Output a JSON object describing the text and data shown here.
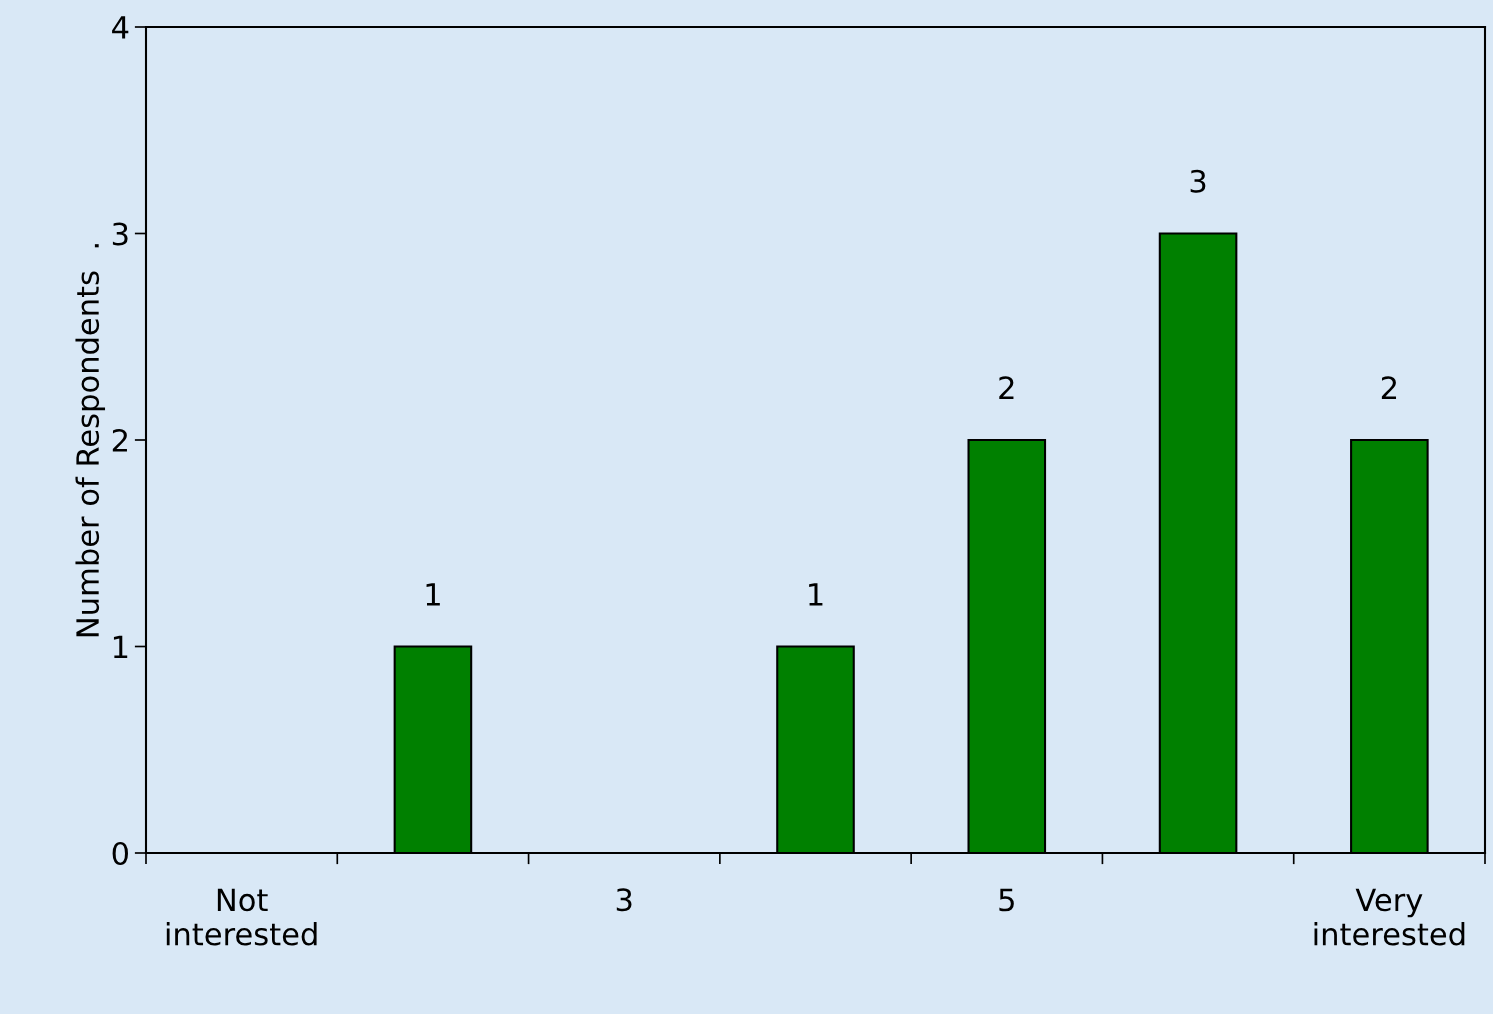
{
  "chart_data": {
    "type": "bar",
    "categories": [
      "Not\ninterested",
      null,
      "3",
      null,
      "5",
      null,
      "Very\ninterested"
    ],
    "values": [
      0,
      1,
      0,
      1,
      2,
      3,
      2
    ],
    "value_labels": [
      null,
      "1",
      null,
      "1",
      "2",
      "3",
      "2"
    ],
    "color": "#008000",
    "ylabel": "Number of Respondents  .",
    "ylim": [
      0,
      4
    ],
    "yticks": [
      0,
      1,
      2,
      3,
      4
    ],
    "grid": false
  }
}
